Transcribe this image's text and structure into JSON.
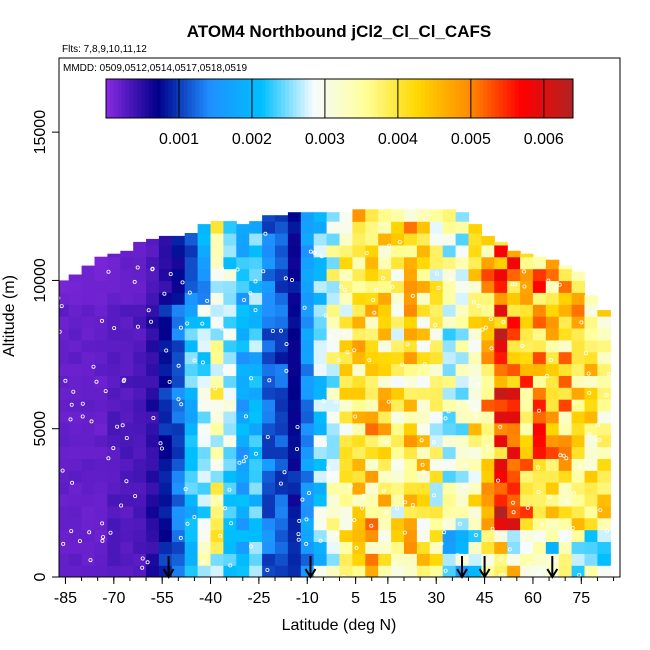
{
  "chart_data": {
    "type": "heatmap",
    "title": "ATOM4 Northbound jCl2_Cl_Cl_CAFS",
    "subtitle_flights": "Flts: 7,8,9,10,11,12",
    "subtitle_dates": "MMDD: 0509,0512,0514,0517,0518,0519",
    "xlabel": "Latitude (deg N)",
    "ylabel": "Altitude (m)",
    "xlim": [
      -87,
      87
    ],
    "ylim": [
      0,
      17500
    ],
    "x_ticks": [
      -85,
      -70,
      -55,
      -40,
      -25,
      -10,
      5,
      15,
      30,
      45,
      60,
      75
    ],
    "x_tick_labels": [
      "-85",
      "-70",
      "-55",
      "-40",
      "-25",
      "-10",
      "5",
      "15",
      "30",
      "45",
      "60",
      "75"
    ],
    "y_ticks": [
      0,
      5000,
      10000,
      15000
    ],
    "y_tick_labels": [
      "0",
      "5000",
      "10000",
      "15000"
    ],
    "colorbar": {
      "range": [
        0,
        0.0064
      ],
      "ticks": [
        0.001,
        0.002,
        0.003,
        0.004,
        0.005,
        0.006
      ],
      "tick_labels": [
        "0.001",
        "0.002",
        "0.003",
        "0.004",
        "0.005",
        "0.006"
      ],
      "colors": [
        "#8b2be2",
        "#00008b",
        "#1e90ff",
        "#00bfff",
        "#f5fbff",
        "#ffff99",
        "#ffd700",
        "#ff8c00",
        "#ff0000",
        "#b22222"
      ]
    },
    "flight_arrows_lat": [
      -53,
      -9,
      38,
      45,
      66
    ],
    "profile_columns": [
      {
        "lat": -86,
        "top": 10000,
        "value": 0.0002
      },
      {
        "lat": -82,
        "top": 10200,
        "value": 0.0002
      },
      {
        "lat": -78,
        "top": 10500,
        "value": 0.0002
      },
      {
        "lat": -74,
        "top": 10800,
        "value": 0.0002
      },
      {
        "lat": -70,
        "top": 10900,
        "value": 0.0003
      },
      {
        "lat": -66,
        "top": 11000,
        "value": 0.0003
      },
      {
        "lat": -62,
        "top": 11300,
        "value": 0.0003
      },
      {
        "lat": -58,
        "top": 11400,
        "value": 0.0005
      },
      {
        "lat": -54,
        "top": 11500,
        "value": 0.0009
      },
      {
        "lat": -50,
        "top": 11500,
        "value": 0.0012
      },
      {
        "lat": -46,
        "top": 11600,
        "value": 0.0021
      },
      {
        "lat": -42,
        "top": 11900,
        "value": 0.0028
      },
      {
        "lat": -38,
        "top": 12000,
        "value": 0.0033
      },
      {
        "lat": -34,
        "top": 12000,
        "value": 0.0026
      },
      {
        "lat": -30,
        "top": 11900,
        "value": 0.0019
      },
      {
        "lat": -26,
        "top": 12000,
        "value": 0.0022
      },
      {
        "lat": -22,
        "top": 12200,
        "value": 0.0013
      },
      {
        "lat": -18,
        "top": 12200,
        "value": 0.0011
      },
      {
        "lat": -14,
        "top": 12300,
        "value": 0.0008
      },
      {
        "lat": -10,
        "top": 12300,
        "value": 0.0015
      },
      {
        "lat": -6,
        "top": 12300,
        "value": 0.0024
      },
      {
        "lat": -2,
        "top": 12300,
        "value": 0.0031
      },
      {
        "lat": 2,
        "top": 12300,
        "value": 0.0036
      },
      {
        "lat": 6,
        "top": 12400,
        "value": 0.004
      },
      {
        "lat": 10,
        "top": 12400,
        "value": 0.0042
      },
      {
        "lat": 14,
        "top": 12400,
        "value": 0.0039
      },
      {
        "lat": 18,
        "top": 12400,
        "value": 0.0036
      },
      {
        "lat": 22,
        "top": 12400,
        "value": 0.0041
      },
      {
        "lat": 26,
        "top": 12400,
        "value": 0.0038
      },
      {
        "lat": 30,
        "top": 12400,
        "value": 0.0034
      },
      {
        "lat": 34,
        "top": 12400,
        "value": 0.003
      },
      {
        "lat": 38,
        "top": 12300,
        "value": 0.0029
      },
      {
        "lat": 42,
        "top": 11900,
        "value": 0.0037
      },
      {
        "lat": 46,
        "top": 11500,
        "value": 0.0044
      },
      {
        "lat": 50,
        "top": 11300,
        "value": 0.0052
      },
      {
        "lat": 54,
        "top": 11000,
        "value": 0.0049
      },
      {
        "lat": 58,
        "top": 10900,
        "value": 0.0045
      },
      {
        "lat": 62,
        "top": 10800,
        "value": 0.0046
      },
      {
        "lat": 66,
        "top": 10700,
        "value": 0.0044
      },
      {
        "lat": 70,
        "top": 10500,
        "value": 0.0043
      },
      {
        "lat": 74,
        "top": 10300,
        "value": 0.0041
      },
      {
        "lat": 78,
        "top": 9500,
        "value": 0.0038
      },
      {
        "lat": 82,
        "top": 9000,
        "value": 0.0037
      }
    ]
  }
}
